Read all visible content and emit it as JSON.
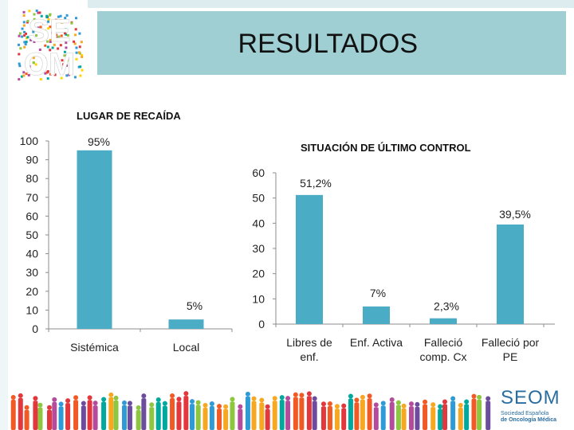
{
  "header": {
    "title": "RESULTADOS"
  },
  "logo": {
    "lines": [
      "SE",
      "OM"
    ]
  },
  "footer_logo": {
    "name": "SEOM",
    "subtitle_1": "Sociedad Española",
    "subtitle_2": "de Oncología Médica"
  },
  "chart_data": [
    {
      "type": "bar",
      "title": "LUGAR DE RECAÍDA",
      "categories": [
        "Sistémica",
        "Local"
      ],
      "values": [
        95,
        5
      ],
      "data_labels": [
        "95%",
        "5%"
      ],
      "ylim": [
        0,
        100
      ],
      "yticks": [
        0,
        10,
        20,
        30,
        40,
        50,
        60,
        70,
        80,
        90,
        100
      ],
      "color": "#4bacc6",
      "grid": false
    },
    {
      "type": "bar",
      "title": "SITUACIÓN DE ÚLTIMO CONTROL",
      "categories": [
        [
          "Libres de",
          "enf."
        ],
        [
          "Enf. Activa"
        ],
        [
          "Falleció",
          "comp. Cx"
        ],
        [
          "Falleció por",
          "PE"
        ]
      ],
      "values": [
        51.2,
        7,
        2.3,
        39.5
      ],
      "data_labels": [
        "51,2%",
        "7%",
        "2,3%",
        "39,5%"
      ],
      "ylim": [
        0,
        60
      ],
      "yticks": [
        0,
        10,
        20,
        30,
        40,
        50,
        60
      ],
      "color": "#4bacc6",
      "grid": false
    }
  ]
}
